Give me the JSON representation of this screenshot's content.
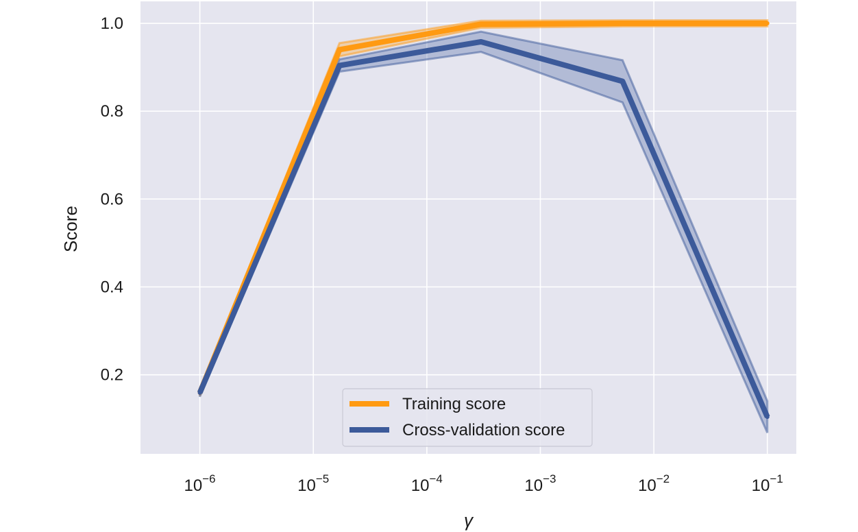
{
  "chart_data": {
    "type": "line",
    "title": "",
    "xlabel": "γ",
    "ylabel": "Score",
    "xscale": "log",
    "xlim": [
      3e-07,
      0.18
    ],
    "ylim": [
      0.02,
      1.05
    ],
    "grid": true,
    "background": "#e5e5ef",
    "xticks": [
      {
        "value": 1e-06,
        "base": "10",
        "exp": "−6"
      },
      {
        "value": 1e-05,
        "base": "10",
        "exp": "−5"
      },
      {
        "value": 0.0001,
        "base": "10",
        "exp": "−4"
      },
      {
        "value": 0.001,
        "base": "10",
        "exp": "−3"
      },
      {
        "value": 0.01,
        "base": "10",
        "exp": "−2"
      },
      {
        "value": 0.1,
        "base": "10",
        "exp": "−1"
      }
    ],
    "yticks": [
      {
        "value": 0.2,
        "label": "0.2"
      },
      {
        "value": 0.4,
        "label": "0.4"
      },
      {
        "value": 0.6,
        "label": "0.6"
      },
      {
        "value": 0.8,
        "label": "0.8"
      },
      {
        "value": 1.0,
        "label": "1.0"
      }
    ],
    "x": [
      1e-06,
      1.7e-05,
      0.0003,
      0.0053,
      0.1
    ],
    "series": [
      {
        "name": "Training score",
        "color": "#ff9a12",
        "values": [
          0.159,
          0.94,
          0.998,
          1.0,
          1.0
        ],
        "lower": [
          0.152,
          0.925,
          0.99,
          0.993,
          0.993
        ],
        "upper": [
          0.166,
          0.955,
          1.006,
          1.007,
          1.007
        ]
      },
      {
        "name": "Cross-validation score",
        "color": "#3c5a9a",
        "values": [
          0.159,
          0.904,
          0.958,
          0.868,
          0.104
        ],
        "lower": [
          0.15,
          0.89,
          0.935,
          0.82,
          0.068
        ],
        "upper": [
          0.168,
          0.918,
          0.981,
          0.916,
          0.14
        ]
      }
    ],
    "legend": {
      "position": "lower-center"
    }
  }
}
